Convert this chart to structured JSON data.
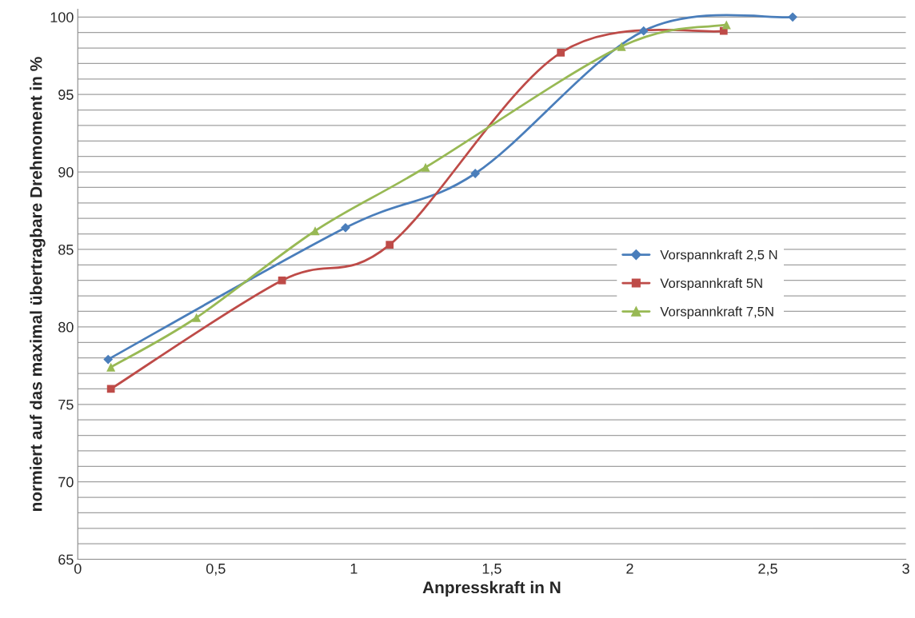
{
  "chart_data": {
    "type": "line",
    "xlabel": "Anpresskraft in N",
    "ylabel": "normiert auf das maximal übertragbare Drehmoment in %",
    "xlim": [
      0,
      3
    ],
    "ylim": [
      65,
      100.5
    ],
    "xticks": [
      0,
      {
        "value": 0.5,
        "label": "0,5"
      },
      1,
      {
        "value": 1.5,
        "label": "1,5"
      },
      2,
      {
        "value": 2.5,
        "label": "2,5"
      },
      3
    ],
    "yticks": [
      65,
      {
        "value": 66,
        "label": null
      },
      {
        "value": 67,
        "label": null
      },
      {
        "value": 68,
        "label": null
      },
      {
        "value": 69,
        "label": null
      },
      70,
      {
        "value": 71,
        "label": null
      },
      {
        "value": 72,
        "label": null
      },
      {
        "value": 73,
        "label": null
      },
      {
        "value": 74,
        "label": null
      },
      75,
      {
        "value": 76,
        "label": null
      },
      {
        "value": 77,
        "label": null
      },
      {
        "value": 78,
        "label": null
      },
      {
        "value": 79,
        "label": null
      },
      80,
      {
        "value": 81,
        "label": null
      },
      {
        "value": 82,
        "label": null
      },
      {
        "value": 83,
        "label": null
      },
      {
        "value": 84,
        "label": null
      },
      85,
      {
        "value": 86,
        "label": null
      },
      {
        "value": 87,
        "label": null
      },
      {
        "value": 88,
        "label": null
      },
      {
        "value": 89,
        "label": null
      },
      90,
      {
        "value": 91,
        "label": null
      },
      {
        "value": 92,
        "label": null
      },
      {
        "value": 93,
        "label": null
      },
      {
        "value": 94,
        "label": null
      },
      95,
      {
        "value": 96,
        "label": null
      },
      {
        "value": 97,
        "label": null
      },
      {
        "value": 98,
        "label": null
      },
      {
        "value": 99,
        "label": null
      },
      100
    ],
    "grid": "y",
    "legend": "right",
    "series": [
      {
        "name": "Vorspannkraft 2,5 N",
        "color": "#4a7ebb",
        "marker": "diamond",
        "x": [
          0.11,
          0.97,
          1.44,
          2.05,
          2.59
        ],
        "values": [
          77.9,
          86.4,
          89.9,
          99.1,
          100
        ]
      },
      {
        "name": "Vorspannkraft 5N",
        "color": "#be4b48",
        "marker": "square",
        "x": [
          0.12,
          0.74,
          1.13,
          1.75,
          2.34
        ],
        "values": [
          76.0,
          83.0,
          85.3,
          97.7,
          99.1
        ]
      },
      {
        "name": "Vorspannkraft 7,5N",
        "color": "#98b954",
        "marker": "triangle",
        "x": [
          0.12,
          0.43,
          0.86,
          1.26,
          1.97,
          2.35
        ],
        "values": [
          77.4,
          80.6,
          86.2,
          90.3,
          98.1,
          99.5
        ]
      }
    ]
  }
}
